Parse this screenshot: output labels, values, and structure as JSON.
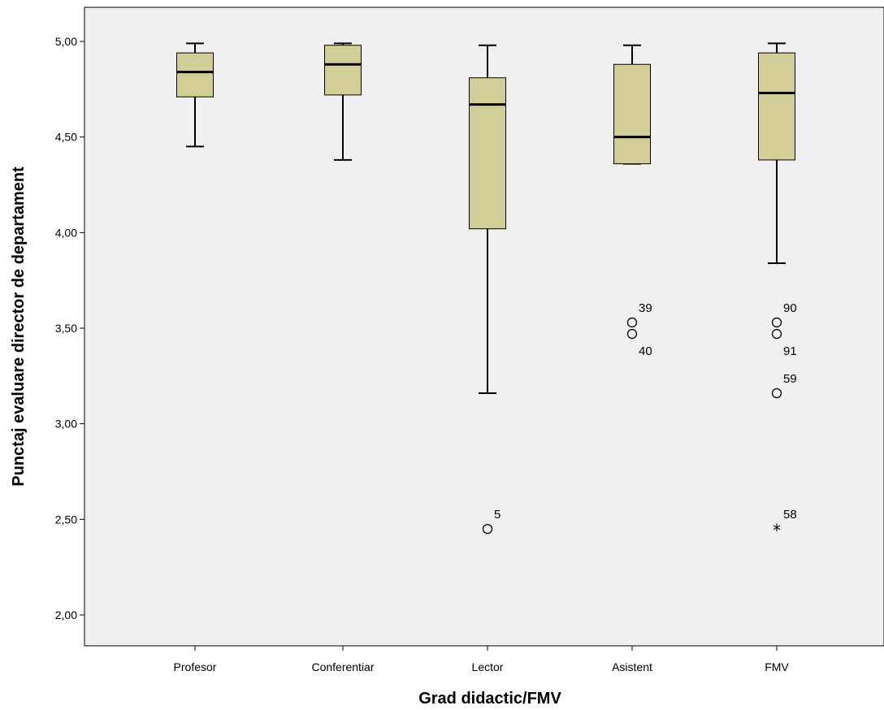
{
  "chart_data": {
    "type": "boxplot",
    "title": "",
    "xlabel": "Grad didactic/FMV",
    "ylabel": "Punctaj evaluare director de departament",
    "ylim": [
      1.85,
      5.17
    ],
    "yticks": [
      2.0,
      2.5,
      3.0,
      3.5,
      4.0,
      4.5,
      5.0
    ],
    "ytick_labels": [
      "2,00",
      "2,50",
      "3,00",
      "3,50",
      "4,00",
      "4,50",
      "5,00"
    ],
    "grid": false,
    "legend": "none",
    "colors": {
      "plot_background": "#f0f0f0",
      "box_fill": "#d3ce97",
      "line": "#000000"
    },
    "categories": [
      "Profesor",
      "Conferentiar",
      "Lector",
      "Asistent",
      "FMV"
    ],
    "boxes": [
      {
        "category": "Profesor",
        "whisker_low": 4.45,
        "q1": 4.71,
        "median": 4.84,
        "q3": 4.94,
        "whisker_high": 4.99,
        "outliers": []
      },
      {
        "category": "Conferentiar",
        "whisker_low": 4.38,
        "q1": 4.72,
        "median": 4.88,
        "q3": 4.98,
        "whisker_high": 4.99,
        "outliers": []
      },
      {
        "category": "Lector",
        "whisker_low": 3.16,
        "q1": 4.02,
        "median": 4.67,
        "q3": 4.81,
        "whisker_high": 4.98,
        "outliers": [
          {
            "value": 2.45,
            "label": "5",
            "symbol": "circle",
            "label_side": "upper"
          }
        ]
      },
      {
        "category": "Asistent",
        "whisker_low": 4.36,
        "q1": 4.36,
        "median": 4.5,
        "q3": 4.88,
        "whisker_high": 4.98,
        "outliers": [
          {
            "value": 3.53,
            "label": "39",
            "symbol": "circle",
            "label_side": "upper"
          },
          {
            "value": 3.47,
            "label": "40",
            "symbol": "circle",
            "label_side": "lower"
          }
        ]
      },
      {
        "category": "FMV",
        "whisker_low": 3.84,
        "q1": 4.38,
        "median": 4.73,
        "q3": 4.94,
        "whisker_high": 4.99,
        "outliers": [
          {
            "value": 3.53,
            "label": "90",
            "symbol": "circle",
            "label_side": "upper"
          },
          {
            "value": 3.47,
            "label": "91",
            "symbol": "circle",
            "label_side": "lower"
          },
          {
            "value": 3.16,
            "label": "59",
            "symbol": "circle",
            "label_side": "upper"
          },
          {
            "value": 2.45,
            "label": "58",
            "symbol": "star",
            "label_side": "upper"
          }
        ]
      }
    ]
  }
}
